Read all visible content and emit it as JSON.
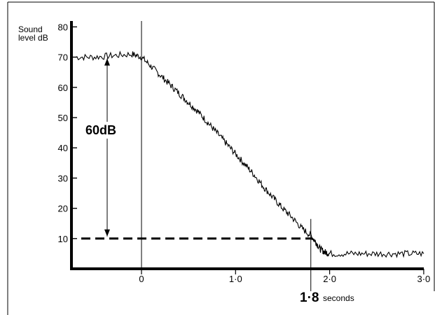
{
  "chart_data": {
    "type": "line",
    "title": "",
    "ylabel_lines": [
      "Sound",
      "level dB"
    ],
    "xlabel": "",
    "xlim": [
      -0.75,
      3.0
    ],
    "ylim": [
      0,
      80
    ],
    "y_ticks": [
      {
        "value": 10,
        "label": "10"
      },
      {
        "value": 20,
        "label": "20"
      },
      {
        "value": 30,
        "label": "30"
      },
      {
        "value": 40,
        "label": "40"
      },
      {
        "value": 50,
        "label": "50"
      },
      {
        "value": 60,
        "label": "60"
      },
      {
        "value": 70,
        "label": "70"
      },
      {
        "value": 80,
        "label": "80"
      }
    ],
    "x_ticks": [
      {
        "value": 0,
        "label": "0"
      },
      {
        "value": 1,
        "label": "1·0"
      },
      {
        "value": 2,
        "label": "2·0"
      },
      {
        "value": 3,
        "label": "3·0"
      }
    ],
    "series": [
      {
        "x": [
          -0.7,
          -0.5,
          -0.3,
          -0.1,
          0.0,
          0.1,
          0.2,
          0.3,
          0.4,
          0.5,
          0.6,
          0.7,
          0.8,
          0.9,
          1.0,
          1.1,
          1.2,
          1.3,
          1.4,
          1.5,
          1.6,
          1.7,
          1.8,
          1.85,
          1.9,
          1.95,
          2.0,
          2.2,
          2.4,
          2.6,
          2.8,
          3.0
        ],
        "y": [
          70,
          70,
          70.5,
          71,
          70,
          67,
          64,
          61,
          58,
          55,
          52,
          48.5,
          45,
          41.5,
          38,
          34.5,
          31,
          27,
          23.5,
          20,
          17,
          13.5,
          11,
          9,
          6.5,
          5.5,
          5,
          5,
          5,
          5,
          5,
          5
        ]
      }
    ],
    "annotations": {
      "drop_label": "60dB",
      "decay_time_value": "1·8",
      "decay_time_unit": "seconds",
      "arrow_from_db": 70,
      "arrow_to_db": 10,
      "reference_level_db": 10,
      "reference_time_s": 1.8
    },
    "grid": false,
    "legend": "none"
  }
}
